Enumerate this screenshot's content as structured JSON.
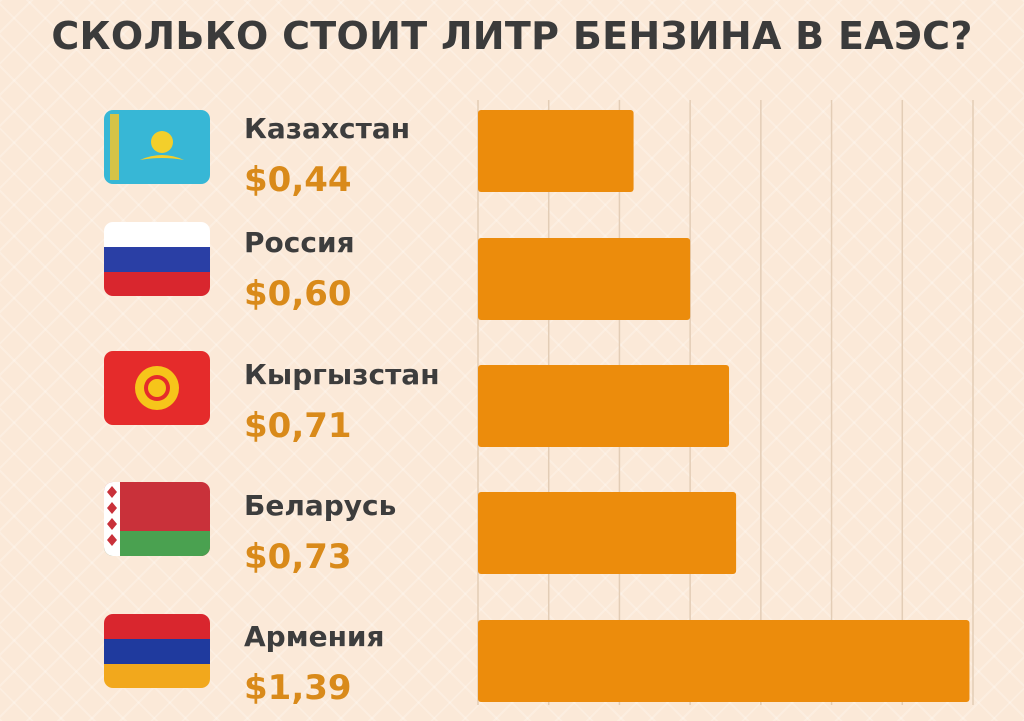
{
  "chart_data": {
    "type": "bar",
    "orientation": "horizontal",
    "title": "СКОЛЬКО СТОИТ ЛИТР БЕНЗИНА В ЕАЭС?",
    "categories": [
      "Казахстан",
      "Россия",
      "Кыргызстан",
      "Беларусь",
      "Армения"
    ],
    "values": [
      0.44,
      0.6,
      0.71,
      0.73,
      1.39
    ],
    "value_labels": [
      "$0,44",
      "$0,60",
      "$0,71",
      "$0,73",
      "$1,39"
    ],
    "flags": [
      "kazakhstan-flag",
      "russia-flag",
      "kyrgyzstan-flag",
      "belarus-flag",
      "armenia-flag"
    ],
    "xlim": [
      0,
      1.4
    ],
    "grid": true,
    "colors": {
      "bar": "#ec8c0c",
      "price": "#d98a1a",
      "label": "#3d3d3d",
      "grid": "#e3cdb6",
      "background": "#fbe9d8"
    }
  }
}
